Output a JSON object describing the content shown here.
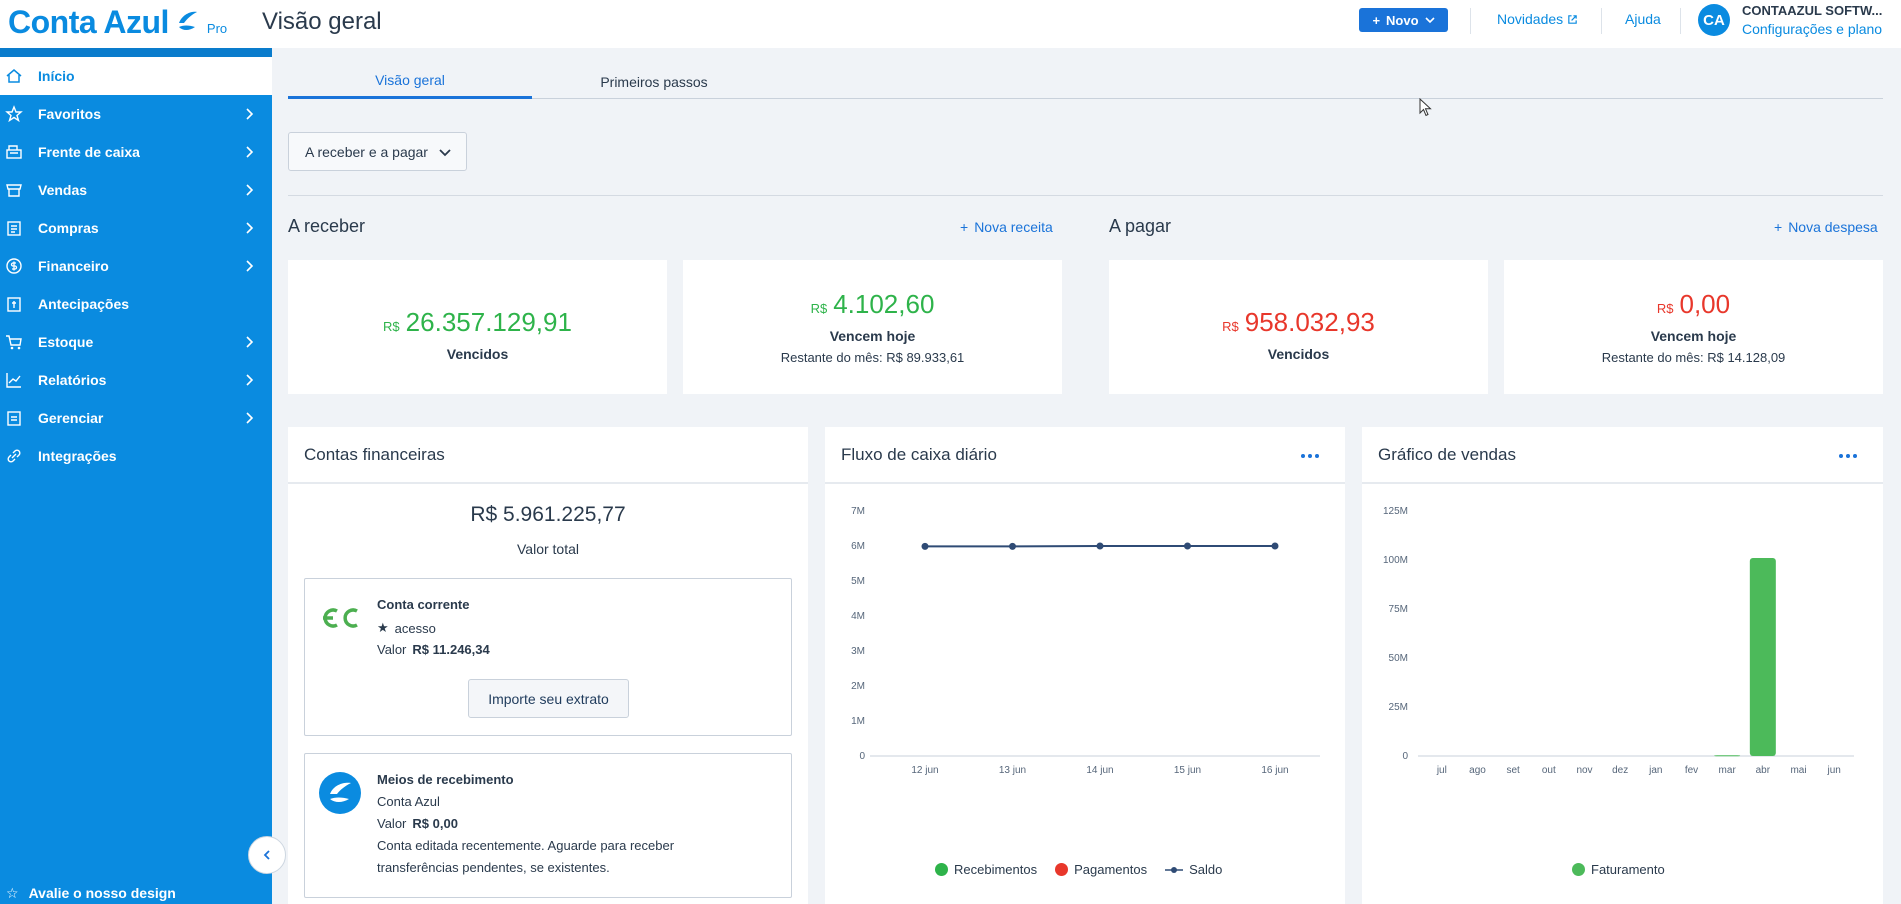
{
  "app": {
    "brand": "Conta Azul",
    "plan": "Pro",
    "page_title": "Visão geral"
  },
  "header": {
    "new_button": "Novo",
    "news_link": "Novidades",
    "help_link": "Ajuda",
    "avatar_initials": "CA",
    "company_name": "CONTAAZUL SOFTW...",
    "company_sub": "Configurações e plano"
  },
  "sidebar": {
    "items": [
      {
        "label": "Início",
        "icon": "home-icon"
      },
      {
        "label": "Favoritos",
        "icon": "star-icon"
      },
      {
        "label": "Frente de caixa",
        "icon": "register-icon"
      },
      {
        "label": "Vendas",
        "icon": "store-icon"
      },
      {
        "label": "Compras",
        "icon": "clipboard-icon"
      },
      {
        "label": "Financeiro",
        "icon": "dollar-icon"
      },
      {
        "label": "Antecipações",
        "icon": "advance-icon"
      },
      {
        "label": "Estoque",
        "icon": "cart-icon"
      },
      {
        "label": "Relatórios",
        "icon": "chart-icon"
      },
      {
        "label": "Gerenciar",
        "icon": "manage-icon"
      },
      {
        "label": "Integrações",
        "icon": "link-icon"
      }
    ],
    "bottom_label": "Avalie o nosso design"
  },
  "tabs": [
    "Visão geral",
    "Primeiros passos"
  ],
  "filter": {
    "label": "A receber e a pagar"
  },
  "receivable": {
    "title": "A receber",
    "link": "Nova receita",
    "overdue": {
      "currency": "R$",
      "value": "26.357.129,91",
      "label": "Vencidos"
    },
    "today": {
      "currency": "R$",
      "value": "4.102,60",
      "label": "Vencem hoje",
      "sub": "Restante do mês: R$ 89.933,61"
    }
  },
  "payable": {
    "title": "A pagar",
    "link": "Nova despesa",
    "overdue": {
      "currency": "R$",
      "value": "958.032,93",
      "label": "Vencidos"
    },
    "today": {
      "currency": "R$",
      "value": "0,00",
      "label": "Vencem hoje",
      "sub": "Restante do mês: R$ 14.128,09"
    }
  },
  "accounts": {
    "title": "Contas financeiras",
    "total_value": "R$ 5.961.225,77",
    "total_label": "Valor total",
    "current": {
      "name": "Conta corrente",
      "tag": "acesso",
      "value_label": "Valor",
      "value": "R$ 11.246,34",
      "button": "Importe seu extrato"
    },
    "receiving": {
      "name": "Meios de recebimento",
      "bank": "Conta Azul",
      "value_label": "Valor",
      "value": "R$ 0,00",
      "note_1": "Conta editada recentemente. Aguarde para receber",
      "note_2": "transferências pendentes, se existentes."
    }
  },
  "colors": {
    "primary": "#0a8be0",
    "green": "#2eb34a",
    "red": "#e8372b",
    "line": "#2f4b75"
  },
  "chart_data": [
    {
      "type": "line",
      "title": "Fluxo de caixa diário",
      "x": [
        "12 jun",
        "13 jun",
        "14 jun",
        "15 jun",
        "16 jun"
      ],
      "yticks": [
        "0",
        "1M",
        "2M",
        "3M",
        "4M",
        "5M",
        "6M",
        "7M"
      ],
      "ylim": [
        0,
        7000000
      ],
      "series": [
        {
          "name": "Recebimentos",
          "color": "#2eb34a",
          "values": [
            0,
            0,
            0,
            0,
            0
          ]
        },
        {
          "name": "Pagamentos",
          "color": "#e8372b",
          "values": [
            0,
            0,
            0,
            0,
            0
          ]
        },
        {
          "name": "Saldo",
          "color": "#2f4b75",
          "values": [
            5990000,
            5990000,
            6000000,
            6000000,
            6000000
          ]
        }
      ]
    },
    {
      "type": "bar",
      "title": "Gráfico de vendas",
      "categories": [
        "jul",
        "ago",
        "set",
        "out",
        "nov",
        "dez",
        "jan",
        "fev",
        "mar",
        "abr",
        "mai",
        "jun"
      ],
      "yticks": [
        "0",
        "25M",
        "50M",
        "75M",
        "100M",
        "125M"
      ],
      "ylim": [
        0,
        125000000
      ],
      "series": [
        {
          "name": "Faturamento",
          "color": "#4cba5a",
          "values": [
            0,
            0,
            0,
            0,
            0,
            0,
            0,
            0,
            400000,
            101000000,
            0,
            0
          ]
        }
      ]
    }
  ]
}
